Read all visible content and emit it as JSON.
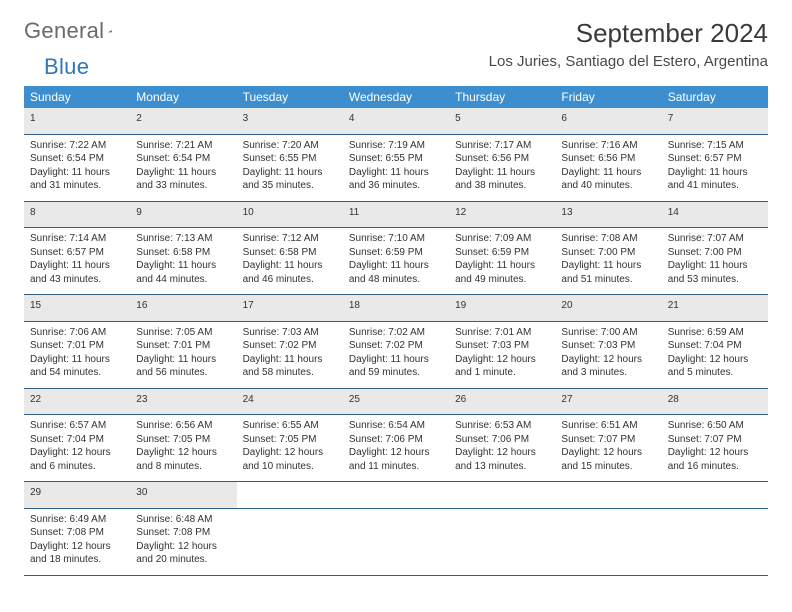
{
  "brand": {
    "part1": "General",
    "part2": "Blue"
  },
  "header": {
    "title": "September 2024",
    "location": "Los Juries, Santiago del Estero, Argentina"
  },
  "colors": {
    "header_bg": "#3d8ecf",
    "header_fg": "#ffffff",
    "daynum_bg": "#e9e9e9",
    "rule": "#2f5e86",
    "brand_gray": "#6a6a6a",
    "brand_blue": "#2f78b7"
  },
  "weekdays": [
    "Sunday",
    "Monday",
    "Tuesday",
    "Wednesday",
    "Thursday",
    "Friday",
    "Saturday"
  ],
  "weeks": [
    [
      {
        "n": "1",
        "sr": "Sunrise: 7:22 AM",
        "ss": "Sunset: 6:54 PM",
        "dl1": "Daylight: 11 hours",
        "dl2": "and 31 minutes."
      },
      {
        "n": "2",
        "sr": "Sunrise: 7:21 AM",
        "ss": "Sunset: 6:54 PM",
        "dl1": "Daylight: 11 hours",
        "dl2": "and 33 minutes."
      },
      {
        "n": "3",
        "sr": "Sunrise: 7:20 AM",
        "ss": "Sunset: 6:55 PM",
        "dl1": "Daylight: 11 hours",
        "dl2": "and 35 minutes."
      },
      {
        "n": "4",
        "sr": "Sunrise: 7:19 AM",
        "ss": "Sunset: 6:55 PM",
        "dl1": "Daylight: 11 hours",
        "dl2": "and 36 minutes."
      },
      {
        "n": "5",
        "sr": "Sunrise: 7:17 AM",
        "ss": "Sunset: 6:56 PM",
        "dl1": "Daylight: 11 hours",
        "dl2": "and 38 minutes."
      },
      {
        "n": "6",
        "sr": "Sunrise: 7:16 AM",
        "ss": "Sunset: 6:56 PM",
        "dl1": "Daylight: 11 hours",
        "dl2": "and 40 minutes."
      },
      {
        "n": "7",
        "sr": "Sunrise: 7:15 AM",
        "ss": "Sunset: 6:57 PM",
        "dl1": "Daylight: 11 hours",
        "dl2": "and 41 minutes."
      }
    ],
    [
      {
        "n": "8",
        "sr": "Sunrise: 7:14 AM",
        "ss": "Sunset: 6:57 PM",
        "dl1": "Daylight: 11 hours",
        "dl2": "and 43 minutes."
      },
      {
        "n": "9",
        "sr": "Sunrise: 7:13 AM",
        "ss": "Sunset: 6:58 PM",
        "dl1": "Daylight: 11 hours",
        "dl2": "and 44 minutes."
      },
      {
        "n": "10",
        "sr": "Sunrise: 7:12 AM",
        "ss": "Sunset: 6:58 PM",
        "dl1": "Daylight: 11 hours",
        "dl2": "and 46 minutes."
      },
      {
        "n": "11",
        "sr": "Sunrise: 7:10 AM",
        "ss": "Sunset: 6:59 PM",
        "dl1": "Daylight: 11 hours",
        "dl2": "and 48 minutes."
      },
      {
        "n": "12",
        "sr": "Sunrise: 7:09 AM",
        "ss": "Sunset: 6:59 PM",
        "dl1": "Daylight: 11 hours",
        "dl2": "and 49 minutes."
      },
      {
        "n": "13",
        "sr": "Sunrise: 7:08 AM",
        "ss": "Sunset: 7:00 PM",
        "dl1": "Daylight: 11 hours",
        "dl2": "and 51 minutes."
      },
      {
        "n": "14",
        "sr": "Sunrise: 7:07 AM",
        "ss": "Sunset: 7:00 PM",
        "dl1": "Daylight: 11 hours",
        "dl2": "and 53 minutes."
      }
    ],
    [
      {
        "n": "15",
        "sr": "Sunrise: 7:06 AM",
        "ss": "Sunset: 7:01 PM",
        "dl1": "Daylight: 11 hours",
        "dl2": "and 54 minutes."
      },
      {
        "n": "16",
        "sr": "Sunrise: 7:05 AM",
        "ss": "Sunset: 7:01 PM",
        "dl1": "Daylight: 11 hours",
        "dl2": "and 56 minutes."
      },
      {
        "n": "17",
        "sr": "Sunrise: 7:03 AM",
        "ss": "Sunset: 7:02 PM",
        "dl1": "Daylight: 11 hours",
        "dl2": "and 58 minutes."
      },
      {
        "n": "18",
        "sr": "Sunrise: 7:02 AM",
        "ss": "Sunset: 7:02 PM",
        "dl1": "Daylight: 11 hours",
        "dl2": "and 59 minutes."
      },
      {
        "n": "19",
        "sr": "Sunrise: 7:01 AM",
        "ss": "Sunset: 7:03 PM",
        "dl1": "Daylight: 12 hours",
        "dl2": "and 1 minute."
      },
      {
        "n": "20",
        "sr": "Sunrise: 7:00 AM",
        "ss": "Sunset: 7:03 PM",
        "dl1": "Daylight: 12 hours",
        "dl2": "and 3 minutes."
      },
      {
        "n": "21",
        "sr": "Sunrise: 6:59 AM",
        "ss": "Sunset: 7:04 PM",
        "dl1": "Daylight: 12 hours",
        "dl2": "and 5 minutes."
      }
    ],
    [
      {
        "n": "22",
        "sr": "Sunrise: 6:57 AM",
        "ss": "Sunset: 7:04 PM",
        "dl1": "Daylight: 12 hours",
        "dl2": "and 6 minutes."
      },
      {
        "n": "23",
        "sr": "Sunrise: 6:56 AM",
        "ss": "Sunset: 7:05 PM",
        "dl1": "Daylight: 12 hours",
        "dl2": "and 8 minutes."
      },
      {
        "n": "24",
        "sr": "Sunrise: 6:55 AM",
        "ss": "Sunset: 7:05 PM",
        "dl1": "Daylight: 12 hours",
        "dl2": "and 10 minutes."
      },
      {
        "n": "25",
        "sr": "Sunrise: 6:54 AM",
        "ss": "Sunset: 7:06 PM",
        "dl1": "Daylight: 12 hours",
        "dl2": "and 11 minutes."
      },
      {
        "n": "26",
        "sr": "Sunrise: 6:53 AM",
        "ss": "Sunset: 7:06 PM",
        "dl1": "Daylight: 12 hours",
        "dl2": "and 13 minutes."
      },
      {
        "n": "27",
        "sr": "Sunrise: 6:51 AM",
        "ss": "Sunset: 7:07 PM",
        "dl1": "Daylight: 12 hours",
        "dl2": "and 15 minutes."
      },
      {
        "n": "28",
        "sr": "Sunrise: 6:50 AM",
        "ss": "Sunset: 7:07 PM",
        "dl1": "Daylight: 12 hours",
        "dl2": "and 16 minutes."
      }
    ],
    [
      {
        "n": "29",
        "sr": "Sunrise: 6:49 AM",
        "ss": "Sunset: 7:08 PM",
        "dl1": "Daylight: 12 hours",
        "dl2": "and 18 minutes."
      },
      {
        "n": "30",
        "sr": "Sunrise: 6:48 AM",
        "ss": "Sunset: 7:08 PM",
        "dl1": "Daylight: 12 hours",
        "dl2": "and 20 minutes."
      },
      null,
      null,
      null,
      null,
      null
    ]
  ]
}
